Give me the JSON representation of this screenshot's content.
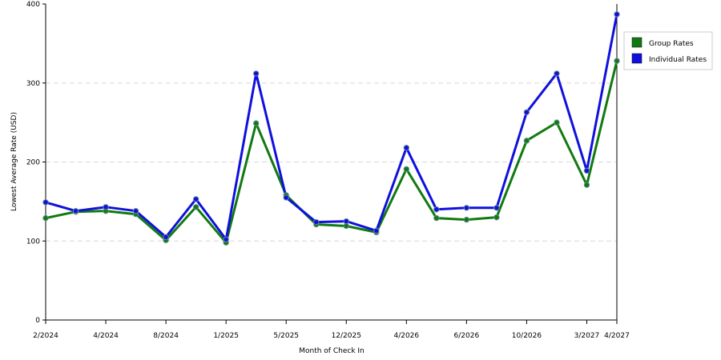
{
  "chart_data": {
    "type": "line",
    "xlabel": "Month of Check In",
    "ylabel": "Lowest Average Rate (USD)",
    "ylim": [
      0,
      400
    ],
    "yticks": [
      0,
      100,
      200,
      300,
      400
    ],
    "grid": true,
    "legend_position": "top-right",
    "x_tick_labels": [
      {
        "label": "2/2024",
        "index": 0
      },
      {
        "label": "4/2024",
        "index": 2
      },
      {
        "label": "8/2024",
        "index": 4
      },
      {
        "label": "1/2025",
        "index": 6
      },
      {
        "label": "5/2025",
        "index": 8
      },
      {
        "label": "12/2025",
        "index": 10
      },
      {
        "label": "4/2026",
        "index": 12
      },
      {
        "label": "6/2026",
        "index": 14
      },
      {
        "label": "10/2026",
        "index": 16
      },
      {
        "label": "3/2027",
        "index": 18
      },
      {
        "label": "4/2027",
        "index": 19
      }
    ],
    "point_count": 20,
    "series": [
      {
        "name": "Group Rates",
        "color": "#107a10",
        "values": [
          129,
          137,
          138,
          134,
          101,
          143,
          98,
          249,
          158,
          121,
          119,
          111,
          191,
          129,
          127,
          130,
          227,
          250,
          171,
          328
        ]
      },
      {
        "name": "Individual Rates",
        "color": "#1010dd",
        "values": [
          149,
          138,
          143,
          138,
          105,
          153,
          102,
          312,
          155,
          124,
          125,
          113,
          218,
          140,
          142,
          142,
          263,
          312,
          189,
          387
        ]
      }
    ]
  }
}
